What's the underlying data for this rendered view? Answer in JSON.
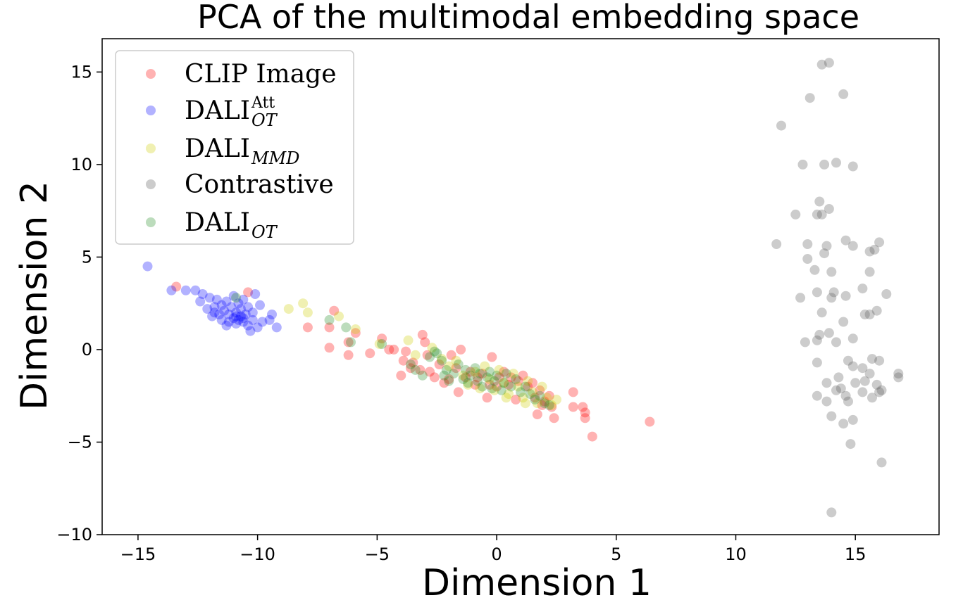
{
  "chart_data": {
    "type": "scatter",
    "title": "PCA of the multimodal embedding space",
    "xlabel": "Dimension 1",
    "ylabel": "Dimension 2",
    "xlim": [
      -16.5,
      18.5
    ],
    "ylim": [
      -10,
      16.8
    ],
    "xticks": [
      -15,
      -10,
      -5,
      0,
      5,
      10,
      15
    ],
    "yticks": [
      -10,
      -5,
      0,
      5,
      10,
      15
    ],
    "xtick_labels": [
      "−15",
      "−10",
      "−5",
      "0",
      "5",
      "10",
      "15"
    ],
    "ytick_labels": [
      "−10",
      "−5",
      "0",
      "5",
      "10",
      "15"
    ],
    "grid": false,
    "legend_position": "upper-left",
    "series": [
      {
        "name": "CLIP Image",
        "label_main": "CLIP Image",
        "label_sub": "",
        "label_sup": "",
        "color": "#ff0000",
        "points": [
          [
            -13.4,
            3.4
          ],
          [
            -10.4,
            3.1
          ],
          [
            -7.9,
            1.2
          ],
          [
            -7.0,
            1.2
          ],
          [
            -7.0,
            0.1
          ],
          [
            -6.8,
            2.1
          ],
          [
            -6.2,
            -0.3
          ],
          [
            -6.2,
            0.4
          ],
          [
            -5.9,
            0.9
          ],
          [
            -5.3,
            -0.2
          ],
          [
            -4.8,
            0.6
          ],
          [
            -4.5,
            0.0
          ],
          [
            -4.3,
            0.0
          ],
          [
            -4.0,
            -1.4
          ],
          [
            -3.9,
            -0.6
          ],
          [
            -3.8,
            -0.1
          ],
          [
            -3.6,
            -1.0
          ],
          [
            -3.5,
            -0.7
          ],
          [
            -3.2,
            -1.1
          ],
          [
            -3.1,
            0.8
          ],
          [
            -3.0,
            0.4
          ],
          [
            -2.9,
            -0.3
          ],
          [
            -2.8,
            -1.2
          ],
          [
            -2.6,
            -1.5
          ],
          [
            -2.4,
            -0.8
          ],
          [
            -2.2,
            -1.8
          ],
          [
            -2.0,
            -1.6
          ],
          [
            -1.9,
            -0.3
          ],
          [
            -1.7,
            -1.0
          ],
          [
            -1.6,
            -2.3
          ],
          [
            -1.5,
            0.0
          ],
          [
            -1.3,
            -1.5
          ],
          [
            -1.1,
            -1.2
          ],
          [
            -0.9,
            -1.9
          ],
          [
            -0.8,
            -1.5
          ],
          [
            -0.6,
            -1.3
          ],
          [
            -0.4,
            -2.6
          ],
          [
            -0.3,
            -1.9
          ],
          [
            -0.2,
            -0.4
          ],
          [
            0.0,
            -2.0
          ],
          [
            0.1,
            -1.5
          ],
          [
            0.3,
            -1.2
          ],
          [
            0.5,
            -1.9
          ],
          [
            0.6,
            -1.5
          ],
          [
            0.8,
            -2.7
          ],
          [
            0.9,
            -1.7
          ],
          [
            1.1,
            -1.4
          ],
          [
            1.3,
            -2.0
          ],
          [
            1.5,
            -1.8
          ],
          [
            1.6,
            -2.6
          ],
          [
            1.7,
            -3.5
          ],
          [
            1.8,
            -2.2
          ],
          [
            1.9,
            -3.0
          ],
          [
            2.0,
            -2.8
          ],
          [
            2.2,
            -2.5
          ],
          [
            2.3,
            -3.1
          ],
          [
            2.4,
            -3.7
          ],
          [
            3.2,
            -2.3
          ],
          [
            3.2,
            -3.1
          ],
          [
            3.6,
            -3.1
          ],
          [
            3.7,
            -3.7
          ],
          [
            3.7,
            -3.4
          ],
          [
            4.0,
            -4.7
          ],
          [
            6.4,
            -3.9
          ]
        ]
      },
      {
        "name": "DALI_OT^Att",
        "label_main": "DALI",
        "label_sub": "OT",
        "label_sup": "Att",
        "color": "#0000ff",
        "points": [
          [
            -14.6,
            4.5
          ],
          [
            -13.6,
            3.2
          ],
          [
            -13.0,
            3.2
          ],
          [
            -12.6,
            3.2
          ],
          [
            -12.4,
            2.6
          ],
          [
            -12.3,
            3.0
          ],
          [
            -12.1,
            2.2
          ],
          [
            -12.0,
            2.8
          ],
          [
            -11.9,
            1.8
          ],
          [
            -11.8,
            2.3
          ],
          [
            -11.7,
            2.7
          ],
          [
            -11.6,
            1.9
          ],
          [
            -11.5,
            1.6
          ],
          [
            -11.5,
            2.4
          ],
          [
            -11.4,
            2.1
          ],
          [
            -11.3,
            2.6
          ],
          [
            -11.2,
            1.5
          ],
          [
            -11.2,
            1.9
          ],
          [
            -11.1,
            2.3
          ],
          [
            -11.0,
            1.7
          ],
          [
            -11.0,
            2.9
          ],
          [
            -10.9,
            1.4
          ],
          [
            -10.9,
            2.0
          ],
          [
            -10.8,
            1.6
          ],
          [
            -10.8,
            2.5
          ],
          [
            -10.7,
            1.8
          ],
          [
            -10.7,
            2.2
          ],
          [
            -10.6,
            1.5
          ],
          [
            -10.6,
            2.7
          ],
          [
            -10.5,
            1.9
          ],
          [
            -10.4,
            1.3
          ],
          [
            -10.4,
            2.3
          ],
          [
            -10.3,
            1.0
          ],
          [
            -10.2,
            1.6
          ],
          [
            -10.2,
            2.0
          ],
          [
            -10.1,
            3.0
          ],
          [
            -10.0,
            1.2
          ],
          [
            -9.9,
            2.4
          ],
          [
            -9.8,
            1.5
          ],
          [
            -9.5,
            1.6
          ],
          [
            -9.4,
            1.9
          ],
          [
            -9.2,
            1.2
          ],
          [
            -10.6,
            1.7
          ],
          [
            -11.3,
            1.3
          ],
          [
            -11.8,
            2.0
          ],
          [
            -10.9,
            1.8
          ]
        ]
      },
      {
        "name": "DALI_MMD",
        "label_main": "DALI",
        "label_sub": "MMD",
        "label_sup": "",
        "color": "#cccc00",
        "points": [
          [
            -8.7,
            2.2
          ],
          [
            -8.1,
            2.5
          ],
          [
            -7.9,
            2.0
          ],
          [
            -6.6,
            1.8
          ],
          [
            -5.9,
            1.1
          ],
          [
            -4.9,
            0.3
          ],
          [
            -3.7,
            0.5
          ],
          [
            -3.4,
            -0.3
          ],
          [
            -2.7,
            0.1
          ],
          [
            -2.3,
            -0.5
          ],
          [
            -2.0,
            -0.9
          ],
          [
            -1.7,
            -0.6
          ],
          [
            -1.4,
            -1.4
          ],
          [
            -1.2,
            -1.9
          ],
          [
            -0.9,
            -1.2
          ],
          [
            -0.7,
            -2.1
          ],
          [
            -0.5,
            -0.9
          ],
          [
            -0.3,
            -1.6
          ],
          [
            -0.1,
            -2.2
          ],
          [
            0.1,
            -1.1
          ],
          [
            0.3,
            -1.8
          ],
          [
            0.5,
            -2.4
          ],
          [
            0.7,
            -1.3
          ],
          [
            0.9,
            -2.0
          ],
          [
            1.1,
            -2.6
          ],
          [
            1.3,
            -1.7
          ],
          [
            1.5,
            -2.3
          ],
          [
            1.7,
            -2.9
          ],
          [
            1.9,
            -2.0
          ],
          [
            2.1,
            -2.6
          ],
          [
            2.3,
            -3.0
          ],
          [
            2.5,
            -2.7
          ],
          [
            1.2,
            -2.9
          ],
          [
            0.4,
            -2.6
          ]
        ]
      },
      {
        "name": "Contrastive",
        "label_main": "Contrastive",
        "label_sub": "",
        "label_sup": "",
        "color": "#555555",
        "points": [
          [
            13.6,
            15.4
          ],
          [
            13.9,
            15.5
          ],
          [
            14.5,
            13.8
          ],
          [
            13.1,
            13.6
          ],
          [
            11.9,
            12.1
          ],
          [
            12.8,
            10.0
          ],
          [
            13.7,
            10.0
          ],
          [
            14.2,
            10.1
          ],
          [
            14.9,
            9.9
          ],
          [
            13.5,
            8.0
          ],
          [
            13.9,
            7.6
          ],
          [
            12.5,
            7.3
          ],
          [
            13.4,
            7.3
          ],
          [
            13.6,
            7.3
          ],
          [
            11.7,
            5.7
          ],
          [
            13.0,
            5.7
          ],
          [
            13.8,
            5.6
          ],
          [
            14.6,
            5.9
          ],
          [
            14.9,
            5.6
          ],
          [
            15.6,
            5.3
          ],
          [
            15.8,
            5.4
          ],
          [
            16.0,
            5.8
          ],
          [
            13.0,
            4.9
          ],
          [
            13.7,
            5.2
          ],
          [
            13.3,
            4.3
          ],
          [
            14.0,
            4.2
          ],
          [
            15.6,
            4.2
          ],
          [
            12.7,
            2.8
          ],
          [
            13.4,
            3.1
          ],
          [
            14.0,
            2.8
          ],
          [
            14.1,
            3.1
          ],
          [
            14.6,
            2.9
          ],
          [
            15.3,
            3.3
          ],
          [
            16.3,
            3.0
          ],
          [
            13.6,
            2.0
          ],
          [
            15.4,
            1.9
          ],
          [
            15.6,
            1.9
          ],
          [
            15.9,
            2.1
          ],
          [
            13.5,
            0.8
          ],
          [
            13.9,
            0.9
          ],
          [
            14.5,
            1.5
          ],
          [
            12.9,
            0.4
          ],
          [
            13.4,
            0.5
          ],
          [
            14.2,
            0.4
          ],
          [
            14.9,
            0.6
          ],
          [
            13.4,
            -0.7
          ],
          [
            14.7,
            -0.6
          ],
          [
            15.7,
            -0.5
          ],
          [
            16.0,
            -0.6
          ],
          [
            14.9,
            -0.9
          ],
          [
            15.3,
            -1.0
          ],
          [
            13.8,
            -1.8
          ],
          [
            14.2,
            -2.2
          ],
          [
            14.3,
            -1.5
          ],
          [
            15.0,
            -1.8
          ],
          [
            15.4,
            -1.7
          ],
          [
            15.6,
            -1.3
          ],
          [
            16.1,
            -2.2
          ],
          [
            16.8,
            -1.3
          ],
          [
            13.4,
            -2.5
          ],
          [
            13.8,
            -2.8
          ],
          [
            14.6,
            -2.5
          ],
          [
            14.7,
            -2.8
          ],
          [
            15.3,
            -2.3
          ],
          [
            15.7,
            -2.6
          ],
          [
            16.0,
            -2.3
          ],
          [
            16.8,
            -1.5
          ],
          [
            14.0,
            -3.6
          ],
          [
            14.5,
            -4.0
          ],
          [
            14.9,
            -3.8
          ],
          [
            14.8,
            -5.1
          ],
          [
            16.1,
            -6.1
          ],
          [
            14.0,
            -8.8
          ],
          [
            15.9,
            -1.9
          ],
          [
            14.4,
            -2.1
          ]
        ]
      },
      {
        "name": "DALI_OT",
        "label_main": "DALI",
        "label_sub": "OT",
        "label_sup": "",
        "color": "#228b22",
        "points": [
          [
            -10.9,
            2.8
          ],
          [
            -7.0,
            1.6
          ],
          [
            -6.3,
            1.2
          ],
          [
            -6.1,
            0.4
          ],
          [
            -4.8,
            0.3
          ],
          [
            -3.4,
            -1.1
          ],
          [
            -3.1,
            -1.4
          ],
          [
            -2.8,
            -0.4
          ],
          [
            -2.6,
            -0.1
          ],
          [
            -2.3,
            -0.6
          ],
          [
            -2.2,
            -1.4
          ],
          [
            -2.1,
            -1.1
          ],
          [
            -2.0,
            -1.7
          ],
          [
            -1.8,
            -1.3
          ],
          [
            -1.6,
            -0.8
          ],
          [
            -1.4,
            -1.6
          ],
          [
            -1.3,
            -1.1
          ],
          [
            -1.2,
            -1.8
          ],
          [
            -1.1,
            -1.4
          ],
          [
            -0.9,
            -1.0
          ],
          [
            -0.8,
            -1.7
          ],
          [
            -0.7,
            -1.3
          ],
          [
            -0.6,
            -2.0
          ],
          [
            -0.4,
            -1.5
          ],
          [
            -0.3,
            -1.2
          ],
          [
            -0.2,
            -2.1
          ],
          [
            -0.1,
            -1.7
          ],
          [
            0.0,
            -1.4
          ],
          [
            0.2,
            -2.2
          ],
          [
            0.3,
            -1.8
          ],
          [
            0.4,
            -1.3
          ],
          [
            0.6,
            -2.0
          ],
          [
            0.8,
            -1.6
          ],
          [
            1.0,
            -2.3
          ],
          [
            1.2,
            -2.0
          ],
          [
            1.4,
            -2.4
          ],
          [
            1.6,
            -2.7
          ],
          [
            1.8,
            -2.5
          ],
          [
            2.0,
            -2.9
          ],
          [
            2.2,
            -3.0
          ],
          [
            -3.6,
            -0.8
          ],
          [
            -2.5,
            -0.2
          ]
        ]
      }
    ]
  }
}
